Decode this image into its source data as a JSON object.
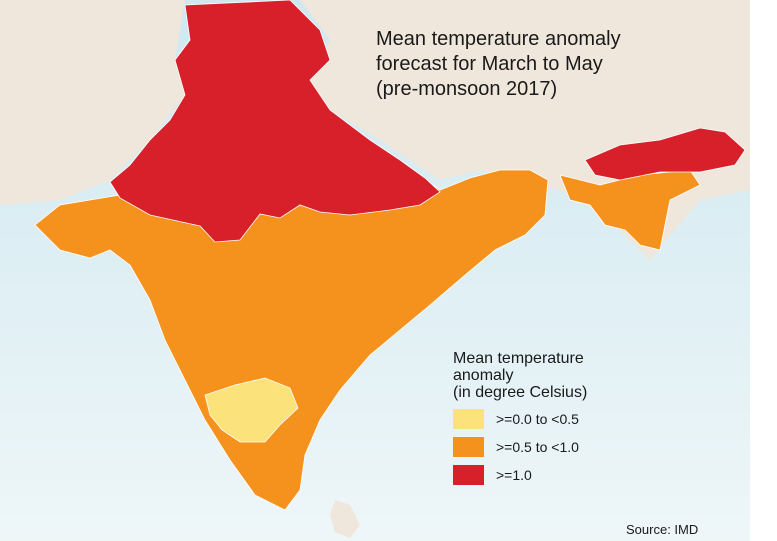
{
  "title": "Mean temperature anomaly forecast for March to May (pre-monsoon 2017)",
  "title_lines": [
    "Mean temperature anomaly",
    "forecast for March to May",
    "(pre-monsoon 2017)"
  ],
  "legend": {
    "heading_lines": [
      "Mean temperature",
      "anomaly",
      "(in degree Celsius)"
    ],
    "items": [
      {
        "label": ">=0.0 to <0.5",
        "color": "#fbe27a"
      },
      {
        "label": ">=0.5 to <1.0",
        "color": "#f5921e"
      },
      {
        "label": ">=1.0",
        "color": "#d7202a"
      }
    ]
  },
  "source": "Source: IMD",
  "colors": {
    "land": "#efe6dc",
    "sea": "#dcedf3",
    "border": "#ffffff"
  }
}
